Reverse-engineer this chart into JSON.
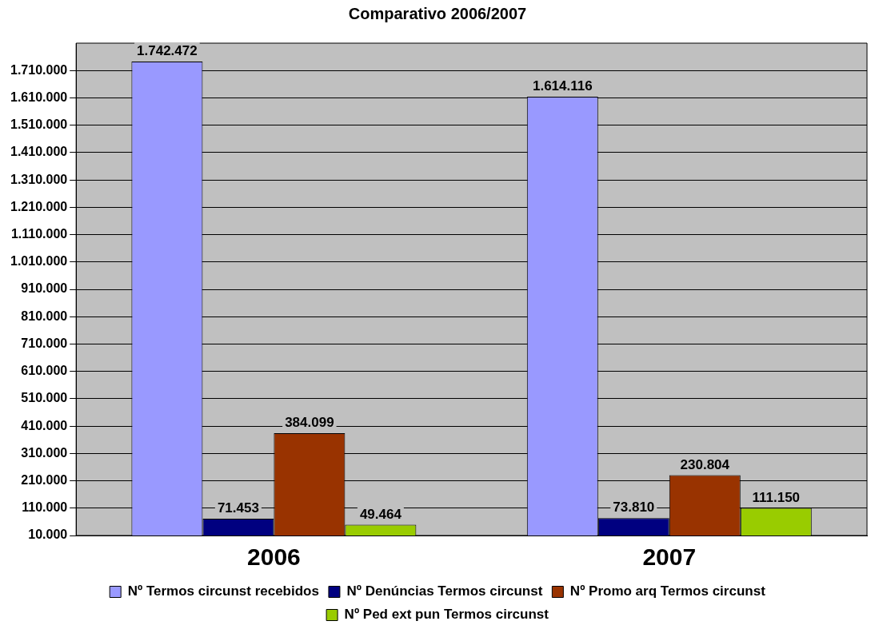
{
  "chart_data": {
    "type": "bar",
    "title": "Comparativo 2006/2007",
    "categories": [
      "2006",
      "2007"
    ],
    "series": [
      {
        "name": "Nº Termos circunst recebidos",
        "color": "#9999ff",
        "values": [
          1742472,
          1614116
        ],
        "value_labels": [
          "1.742.472",
          "1.614.116"
        ]
      },
      {
        "name": "Nº Denúncias Termos circunst",
        "color": "#000080",
        "values": [
          71453,
          73810
        ],
        "value_labels": [
          "71.453",
          "73.810"
        ]
      },
      {
        "name": "Nº Promo arq Termos circunst",
        "color": "#993300",
        "values": [
          384099,
          230804
        ],
        "value_labels": [
          "384.099",
          "230.804"
        ]
      },
      {
        "name": "Nº Ped ext pun Termos circunst",
        "color": "#99cc00",
        "values": [
          49464,
          111150
        ],
        "value_labels": [
          "49.464",
          "111.150"
        ]
      }
    ],
    "ylim": [
      10000,
      1810000
    ],
    "yticks": [
      {
        "value": 10000,
        "label": "10.000"
      },
      {
        "value": 110000,
        "label": "110.000"
      },
      {
        "value": 210000,
        "label": "210.000"
      },
      {
        "value": 310000,
        "label": "310.000"
      },
      {
        "value": 410000,
        "label": "410.000"
      },
      {
        "value": 510000,
        "label": "510.000"
      },
      {
        "value": 610000,
        "label": "610.000"
      },
      {
        "value": 710000,
        "label": "710.000"
      },
      {
        "value": 810000,
        "label": "810.000"
      },
      {
        "value": 910000,
        "label": "910.000"
      },
      {
        "value": 1010000,
        "label": "1.010.000"
      },
      {
        "value": 1110000,
        "label": "1.110.000"
      },
      {
        "value": 1210000,
        "label": "1.210.000"
      },
      {
        "value": 1310000,
        "label": "1.310.000"
      },
      {
        "value": 1410000,
        "label": "1.410.000"
      },
      {
        "value": 1510000,
        "label": "1.510.000"
      },
      {
        "value": 1610000,
        "label": "1.610.000"
      },
      {
        "value": 1710000,
        "label": "1.710.000"
      }
    ],
    "grid": "y",
    "legend": "bottom"
  }
}
